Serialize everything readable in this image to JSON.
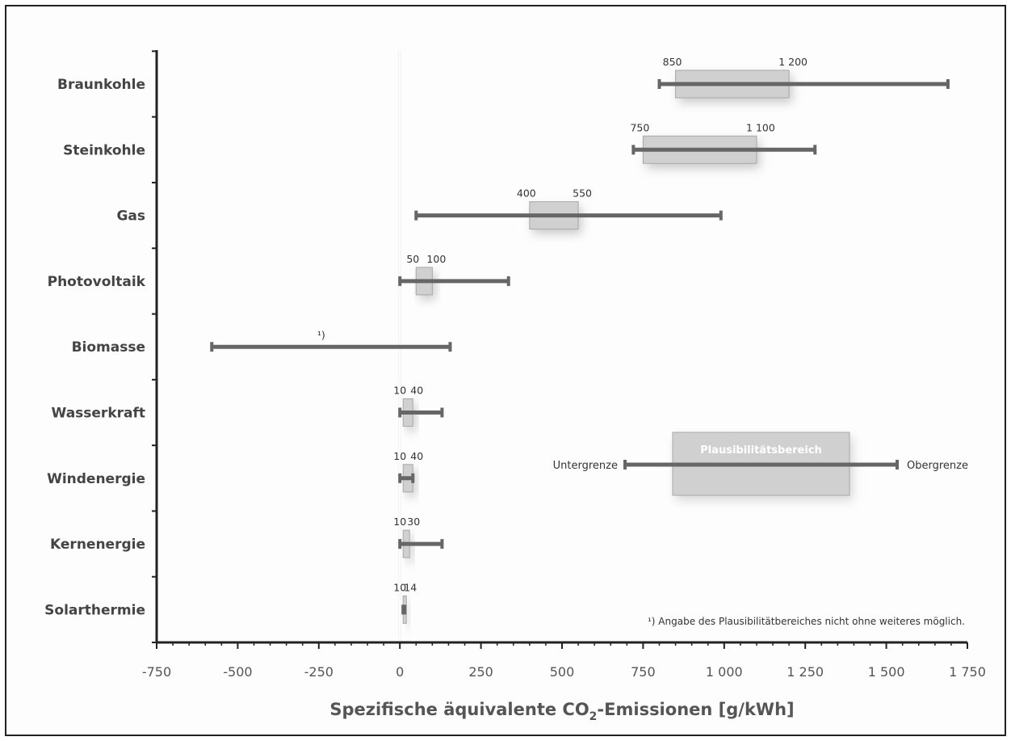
{
  "chart_data": {
    "type": "range-bar",
    "title": "",
    "xlabel_prefix": "Spezifische äquivalente CO",
    "xlabel_sub": "2",
    "xlabel_suffix": "-Emissionen [g/kWh]",
    "xlim": [
      -750,
      1750
    ],
    "xticks": [
      -750,
      -500,
      -250,
      0,
      250,
      500,
      750,
      1000,
      1250,
      1500,
      1750
    ],
    "xtick_labels": [
      "-750",
      "-500",
      "-250",
      "0",
      "250",
      "500",
      "750",
      "1 000",
      "1 250",
      "1 500",
      "1 750"
    ],
    "grid": false,
    "categories": [
      "Braunkohle",
      "Steinkohle",
      "Gas",
      "Photovoltaik",
      "Biomasse",
      "Wasserkraft",
      "Windenergie",
      "Kernenergie",
      "Solarthermie"
    ],
    "series": [
      {
        "category": "Braunkohle",
        "min": 800,
        "max": 1690,
        "plaus_low": 850,
        "plaus_high": 1200,
        "label_low": "850",
        "label_high": "1 200"
      },
      {
        "category": "Steinkohle",
        "min": 720,
        "max": 1280,
        "plaus_low": 750,
        "plaus_high": 1100,
        "label_low": "750",
        "label_high": "1 100"
      },
      {
        "category": "Gas",
        "min": 50,
        "max": 990,
        "plaus_low": 400,
        "plaus_high": 550,
        "label_low": "400",
        "label_high": "550"
      },
      {
        "category": "Photovoltaik",
        "min": 0,
        "max": 335,
        "plaus_low": 50,
        "plaus_high": 100,
        "label_low": "50",
        "label_high": "100"
      },
      {
        "category": "Biomasse",
        "min": -580,
        "max": 155,
        "plaus_low": null,
        "plaus_high": null,
        "note": "¹)"
      },
      {
        "category": "Wasserkraft",
        "min": 0,
        "max": 130,
        "plaus_low": 10,
        "plaus_high": 40,
        "label_low": "10",
        "label_high": "40"
      },
      {
        "category": "Windenergie",
        "min": 0,
        "max": 40,
        "plaus_low": 10,
        "plaus_high": 40,
        "label_low": "10",
        "label_high": "40"
      },
      {
        "category": "Kernenergie",
        "min": 0,
        "max": 130,
        "plaus_low": 10,
        "plaus_high": 30,
        "label_low": "10",
        "label_high": "30"
      },
      {
        "category": "Solarthermie",
        "min": 10,
        "max": 14,
        "plaus_low": 10,
        "plaus_high": 14,
        "label_low": "10",
        "label_high": "14"
      }
    ],
    "legend": {
      "box_label": "Plausibilitätsbereich",
      "low_label": "Untergrenze",
      "high_label": "Obergrenze"
    },
    "footnote": "¹) Angabe des Plausibilitätbereiches nicht ohne weiteres möglich.",
    "colors": {
      "bar": "#666666",
      "box_fill": "#d0d0d0",
      "box_stroke": "#a8a8a8",
      "axis": "#222222",
      "zero_line": "#ffffff"
    }
  }
}
